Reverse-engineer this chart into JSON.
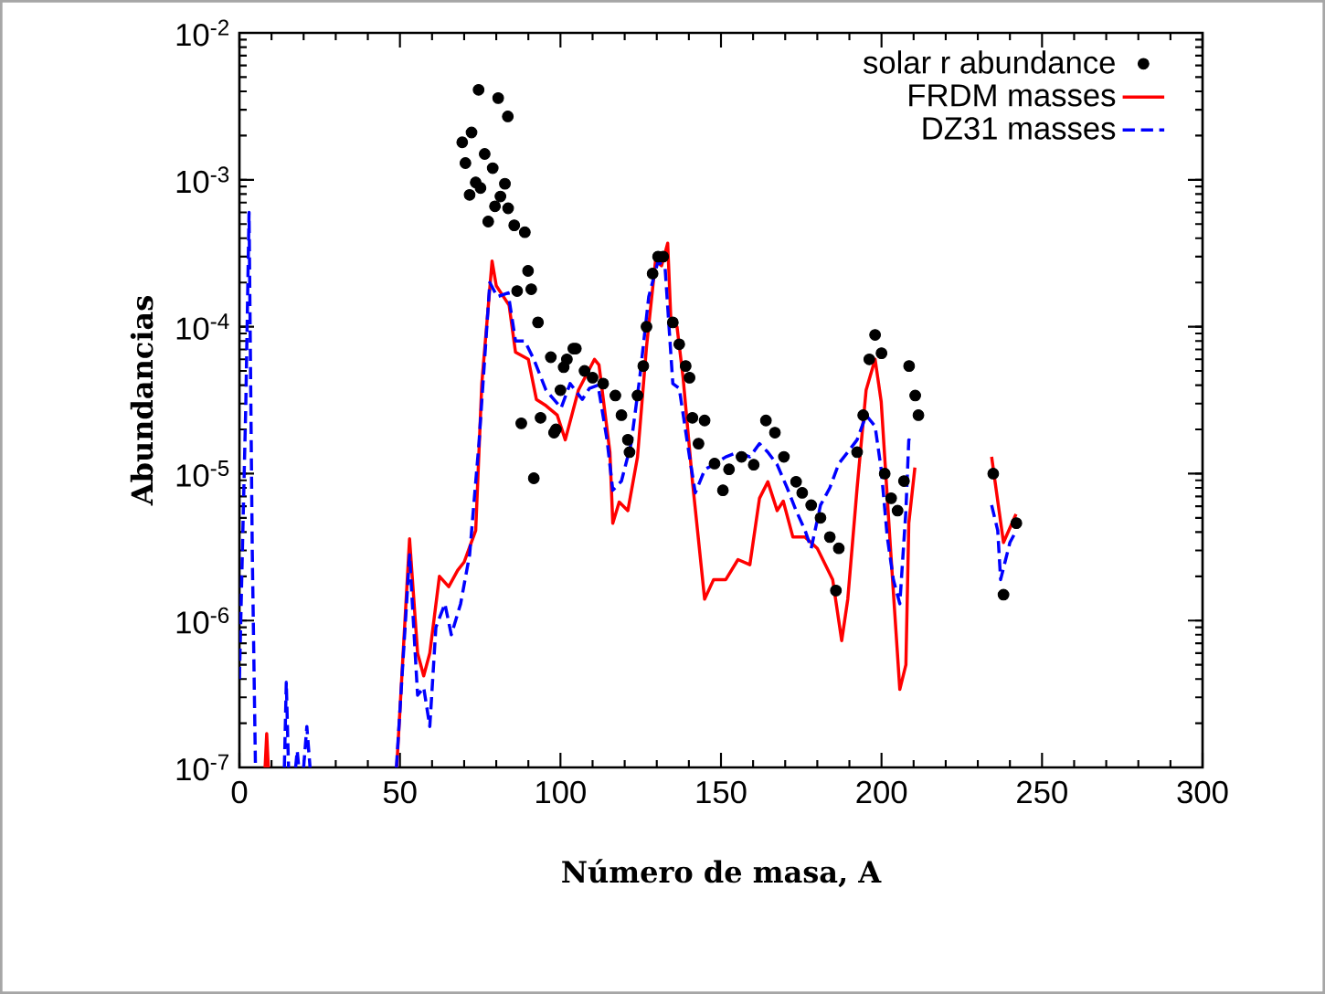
{
  "chart_data": {
    "type": "line",
    "xlabel": "Número de masa, A",
    "ylabel": "Abundancias",
    "xlim": [
      0,
      300
    ],
    "ylim": [
      1e-07,
      0.01
    ],
    "log": "y",
    "legend": "top right",
    "xticks": [
      0,
      50,
      100,
      150,
      200,
      250,
      300
    ],
    "yticks": [
      {
        "value": 1e-07,
        "label": "10$^{-7}$"
      },
      {
        "value": 1e-06,
        "label": "10$^{-6}$"
      },
      {
        "value": 1e-05,
        "label": "10$^{-5}$"
      },
      {
        "value": 0.0001,
        "label": "10$^{-4}$"
      },
      {
        "value": 0.001,
        "label": "10$^{-3}$"
      },
      {
        "value": 0.01,
        "label": "10$^{-2}$"
      }
    ],
    "series": [
      {
        "name": "solar r abundance",
        "type": "scatter",
        "marker": "circle",
        "color": "#000000",
        "x": [
          69.4,
          70.4,
          71.7,
          72.3,
          73.6,
          74.5,
          75.1,
          76.4,
          77.5,
          78.9,
          79.6,
          80.6,
          81.3,
          82.7,
          83.6,
          83.7,
          85.6,
          86.5,
          87.8,
          88.9,
          89.9,
          90.9,
          91.7,
          93,
          93.8,
          97,
          98,
          98.6,
          100,
          101,
          102,
          104,
          104.8,
          107.5,
          110,
          113.3,
          117.1,
          119,
          121,
          121.5,
          124,
          125.8,
          126.8,
          128.7,
          130.4,
          132,
          135,
          137,
          139,
          140.2,
          141.1,
          143,
          144.9,
          148,
          150.6,
          152.5,
          156.4,
          160.2,
          164,
          166.8,
          169.6,
          173.4,
          175.3,
          178.1,
          181,
          183.9,
          185.8,
          186.7,
          192.4,
          194.3,
          196.2,
          198,
          200,
          201,
          203,
          205,
          207,
          208.6,
          210.5,
          211.5,
          234.8,
          238,
          242
        ],
        "values": [
          0.0018,
          0.0013,
          0.00079,
          0.0021,
          0.00096,
          0.0041,
          0.00088,
          0.0015,
          0.00052,
          0.0012,
          0.00066,
          0.0036,
          0.00077,
          0.00094,
          0.0027,
          0.00064,
          0.00049,
          0.000175,
          2.2e-05,
          0.00044,
          0.00024,
          0.00018,
          9.3e-06,
          0.000107,
          2.4e-05,
          6.2e-05,
          1.9e-05,
          2e-05,
          3.7e-05,
          5.3e-05,
          6e-05,
          7.1e-05,
          7.1e-05,
          5e-05,
          4.5e-05,
          4.1e-05,
          3.4e-05,
          2.5e-05,
          1.7e-05,
          1.4e-05,
          3.4e-05,
          5.4e-05,
          0.0001,
          0.00023,
          0.0003,
          0.0003,
          0.000107,
          7.6e-05,
          5.4e-05,
          4.5e-05,
          2.4e-05,
          1.6e-05,
          2.3e-05,
          1.17e-05,
          7.7e-06,
          1.07e-05,
          1.3e-05,
          1.15e-05,
          2.3e-05,
          1.9e-05,
          1.3e-05,
          8.8e-06,
          7.4e-06,
          6.1e-06,
          5e-06,
          3.7e-06,
          1.6e-06,
          3.1e-06,
          1.4e-05,
          2.5e-05,
          6e-05,
          8.8e-05,
          6.6e-05,
          1e-05,
          6.8e-06,
          5.6e-06,
          8.9e-06,
          5.4e-05,
          3.4e-05,
          2.5e-05,
          1e-05,
          1.5e-06,
          4.6e-06
        ]
      },
      {
        "name": "FRDM masses",
        "type": "line",
        "marker": "none",
        "line_style": "solid",
        "color": "#ff0000",
        "x": [
          8,
          8.5,
          9,
          30,
          49,
          53,
          55.5,
          57.4,
          59.3,
          62.3,
          65.2,
          68,
          70,
          73.6,
          75.5,
          78.7,
          80,
          84,
          86,
          90,
          92.5,
          95.5,
          99,
          101.5,
          105.6,
          110.6,
          112,
          115.4,
          116.3,
          118.3,
          121,
          124,
          126.8,
          129.6,
          131.5,
          133.4,
          134.4,
          136.3,
          138.2,
          141.1,
          144.9,
          147.7,
          151.5,
          155.3,
          159,
          162,
          164.6,
          167.5,
          169.4,
          172.4,
          176.2,
          180,
          184.8,
          187.6,
          189.5,
          192.4,
          195.2,
          198,
          199.9,
          202.8,
          205.7,
          207.6,
          208.5,
          210.4,
          220,
          234.3,
          238,
          241.9
        ],
        "values": [
          1e-07,
          1.7e-07,
          1e-07,
          null,
          1e-07,
          3.6e-06,
          6e-07,
          4.2e-07,
          6e-07,
          2e-06,
          1.7e-06,
          2.2e-06,
          2.5e-06,
          4.1e-06,
          4.1e-05,
          0.00028,
          0.00019,
          0.00014,
          6.7e-05,
          6e-05,
          3.2e-05,
          2.9e-05,
          2.5e-05,
          1.7e-05,
          3.7e-05,
          6e-05,
          5.5e-05,
          1.4e-05,
          4.6e-06,
          6.4e-06,
          5.6e-06,
          1.3e-05,
          7.3e-05,
          0.00028,
          0.00026,
          0.00037,
          0.00011,
          0.0001,
          4.5e-05,
          8.9e-06,
          1.4e-06,
          1.9e-06,
          1.9e-06,
          2.6e-06,
          2.4e-06,
          6.8e-06,
          8.8e-06,
          5.6e-06,
          6.5e-06,
          3.7e-06,
          3.7e-06,
          3.1e-06,
          1.9e-06,
          7.3e-07,
          1.4e-06,
          8e-06,
          3.7e-05,
          6e-05,
          3.1e-05,
          3.1e-06,
          3.4e-07,
          5e-07,
          4.6e-06,
          1.1e-05,
          null,
          1.3e-05,
          3.4e-06,
          5.3e-06
        ]
      },
      {
        "name": "DZ31 masses",
        "type": "line",
        "marker": "none",
        "line_style": "dashed",
        "color": "#0000ff",
        "x": [
          0,
          2,
          3,
          4,
          5,
          6,
          14,
          14.6,
          15.3,
          16,
          17.5,
          18,
          18.5,
          19,
          20,
          21,
          22,
          30,
          48.9,
          53,
          55.5,
          57.4,
          59.3,
          61.2,
          64,
          66,
          68.9,
          71.7,
          74.6,
          78,
          80.3,
          83.7,
          86,
          88.9,
          91.7,
          95.5,
          100.2,
          103,
          106.8,
          109,
          111.7,
          114.5,
          116.3,
          119,
          122,
          124.7,
          127.5,
          130.4,
          132.6,
          135,
          137,
          140.2,
          142,
          145,
          147.7,
          151.5,
          155.3,
          159,
          162,
          164.6,
          167.5,
          170.6,
          173.4,
          176.2,
          178.1,
          181,
          183.9,
          186.7,
          189.5,
          192.4,
          195.2,
          198,
          199.9,
          201.8,
          203.7,
          205.7,
          207.6,
          208.5,
          210.4,
          220,
          234.3,
          236.2,
          237.1,
          240,
          242
        ],
        "values": [
          4e-07,
          3e-05,
          0.0006,
          3e-06,
          1e-07,
          null,
          1e-07,
          3.8e-07,
          1e-07,
          null,
          1e-07,
          1.3e-07,
          1e-07,
          null,
          1e-07,
          1.9e-07,
          1e-07,
          null,
          1e-07,
          2.8e-06,
          3.1e-07,
          3.5e-07,
          1.9e-07,
          9e-07,
          1.3e-06,
          8e-07,
          1.3e-06,
          2.8e-06,
          1.6e-05,
          0.0002,
          0.00016,
          0.00017,
          8e-05,
          8e-05,
          6e-05,
          3.7e-05,
          2.8e-05,
          4.1e-05,
          3.2e-05,
          3.8e-05,
          4e-05,
          1.7e-05,
          7.7e-06,
          8.9e-06,
          1.6e-05,
          4.5e-05,
          0.00016,
          0.00028,
          0.00025,
          4.1e-05,
          3.8e-05,
          1.3e-05,
          7.4e-06,
          1.07e-05,
          1.15e-05,
          1.3e-05,
          1.4e-05,
          1.3e-05,
          1.6e-05,
          1.4e-05,
          1.15e-05,
          8e-06,
          5.6e-06,
          4.1e-06,
          3.1e-06,
          6.1e-06,
          8e-06,
          1.17e-05,
          1.4e-05,
          1.7e-05,
          2.5e-05,
          2.1e-05,
          1.07e-05,
          3.7e-06,
          1.9e-06,
          1.3e-06,
          5.6e-06,
          1.7e-05,
          1.6e-05,
          null,
          6.1e-06,
          4.1e-06,
          1.9e-06,
          3.4e-06,
          4.1e-06
        ]
      }
    ]
  }
}
